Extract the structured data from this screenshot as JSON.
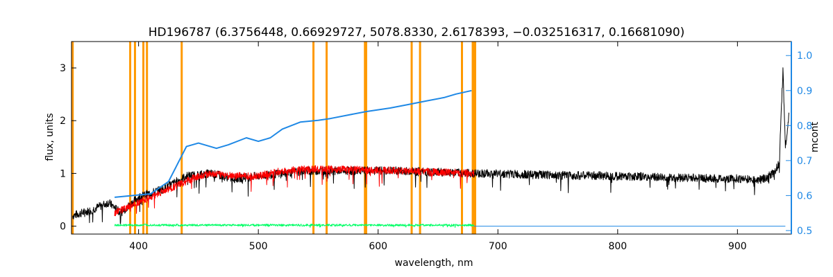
{
  "chart_data": {
    "type": "line",
    "title": "HD196787    (6.3756448, 0.66929727, 5078.8330, 2.6178393, −0.032516317, 0.16681090)",
    "xlabel": "wavelength, nm",
    "ylabel": "flux, units",
    "ylabel_right": "mcont",
    "xlim": [
      344,
      945
    ],
    "ylim": [
      -0.15,
      3.5
    ],
    "ylim_right": [
      0.49,
      1.04
    ],
    "x_ticks": [
      400,
      500,
      600,
      700,
      800,
      900
    ],
    "y_ticks": [
      0,
      1,
      2,
      3
    ],
    "y_ticks_right": [
      "0.5",
      "0.6",
      "0.7",
      "0.8",
      "0.9",
      "1.0"
    ],
    "colors": {
      "observed": "#000000",
      "model": "#ff0000",
      "residual": "#00ff66",
      "continuum": "#1e88e5",
      "mask_lines": "#ff9900",
      "right_axis": "#1e88e5"
    },
    "mask_lines_x": [
      345,
      393,
      397,
      404,
      407,
      436,
      546,
      557,
      589,
      590,
      628,
      635,
      670,
      679,
      680,
      681
    ],
    "series": [
      {
        "key": "observed",
        "x": [
          345,
          360,
          375,
          385,
          400,
          420,
          440,
          460,
          480,
          500,
          520,
          540,
          560,
          580,
          600,
          620,
          640,
          660,
          680,
          700,
          720,
          740,
          760,
          780,
          800,
          820,
          840,
          860,
          880,
          900,
          920,
          930,
          935,
          938,
          940,
          943
        ],
        "y": [
          0.2,
          0.3,
          0.45,
          0.25,
          0.55,
          0.7,
          0.95,
          1.0,
          0.9,
          0.95,
          1.0,
          1.05,
          1.05,
          1.05,
          1.05,
          1.05,
          1.03,
          1.02,
          1.0,
          1.0,
          0.98,
          0.97,
          0.96,
          0.96,
          0.95,
          0.94,
          0.92,
          0.92,
          0.9,
          0.9,
          0.88,
          1.0,
          1.2,
          3.0,
          1.5,
          2.1
        ]
      },
      {
        "key": "model",
        "x": [
          380,
          390,
          400,
          410,
          420,
          430,
          440,
          450,
          460,
          480,
          500,
          520,
          540,
          560,
          580,
          600,
          620,
          640,
          660,
          680
        ],
        "y": [
          0.25,
          0.35,
          0.45,
          0.55,
          0.65,
          0.75,
          0.85,
          0.95,
          1.0,
          0.95,
          0.95,
          1.05,
          1.08,
          1.08,
          1.07,
          1.06,
          1.05,
          1.03,
          1.02,
          1.0
        ]
      },
      {
        "key": "residual",
        "x": [
          380,
          680
        ],
        "y": [
          0.02,
          0.02
        ]
      },
      {
        "key": "continuum",
        "axis": "right",
        "x": [
          380,
          395,
          410,
          425,
          440,
          450,
          465,
          475,
          490,
          500,
          510,
          520,
          535,
          550,
          560,
          575,
          590,
          610,
          625,
          640,
          655,
          665,
          678
        ],
        "y": [
          0.595,
          0.6,
          0.605,
          0.64,
          0.74,
          0.75,
          0.735,
          0.745,
          0.765,
          0.755,
          0.765,
          0.79,
          0.81,
          0.815,
          0.82,
          0.83,
          0.84,
          0.85,
          0.86,
          0.87,
          0.88,
          0.89,
          0.9
        ]
      }
    ]
  }
}
